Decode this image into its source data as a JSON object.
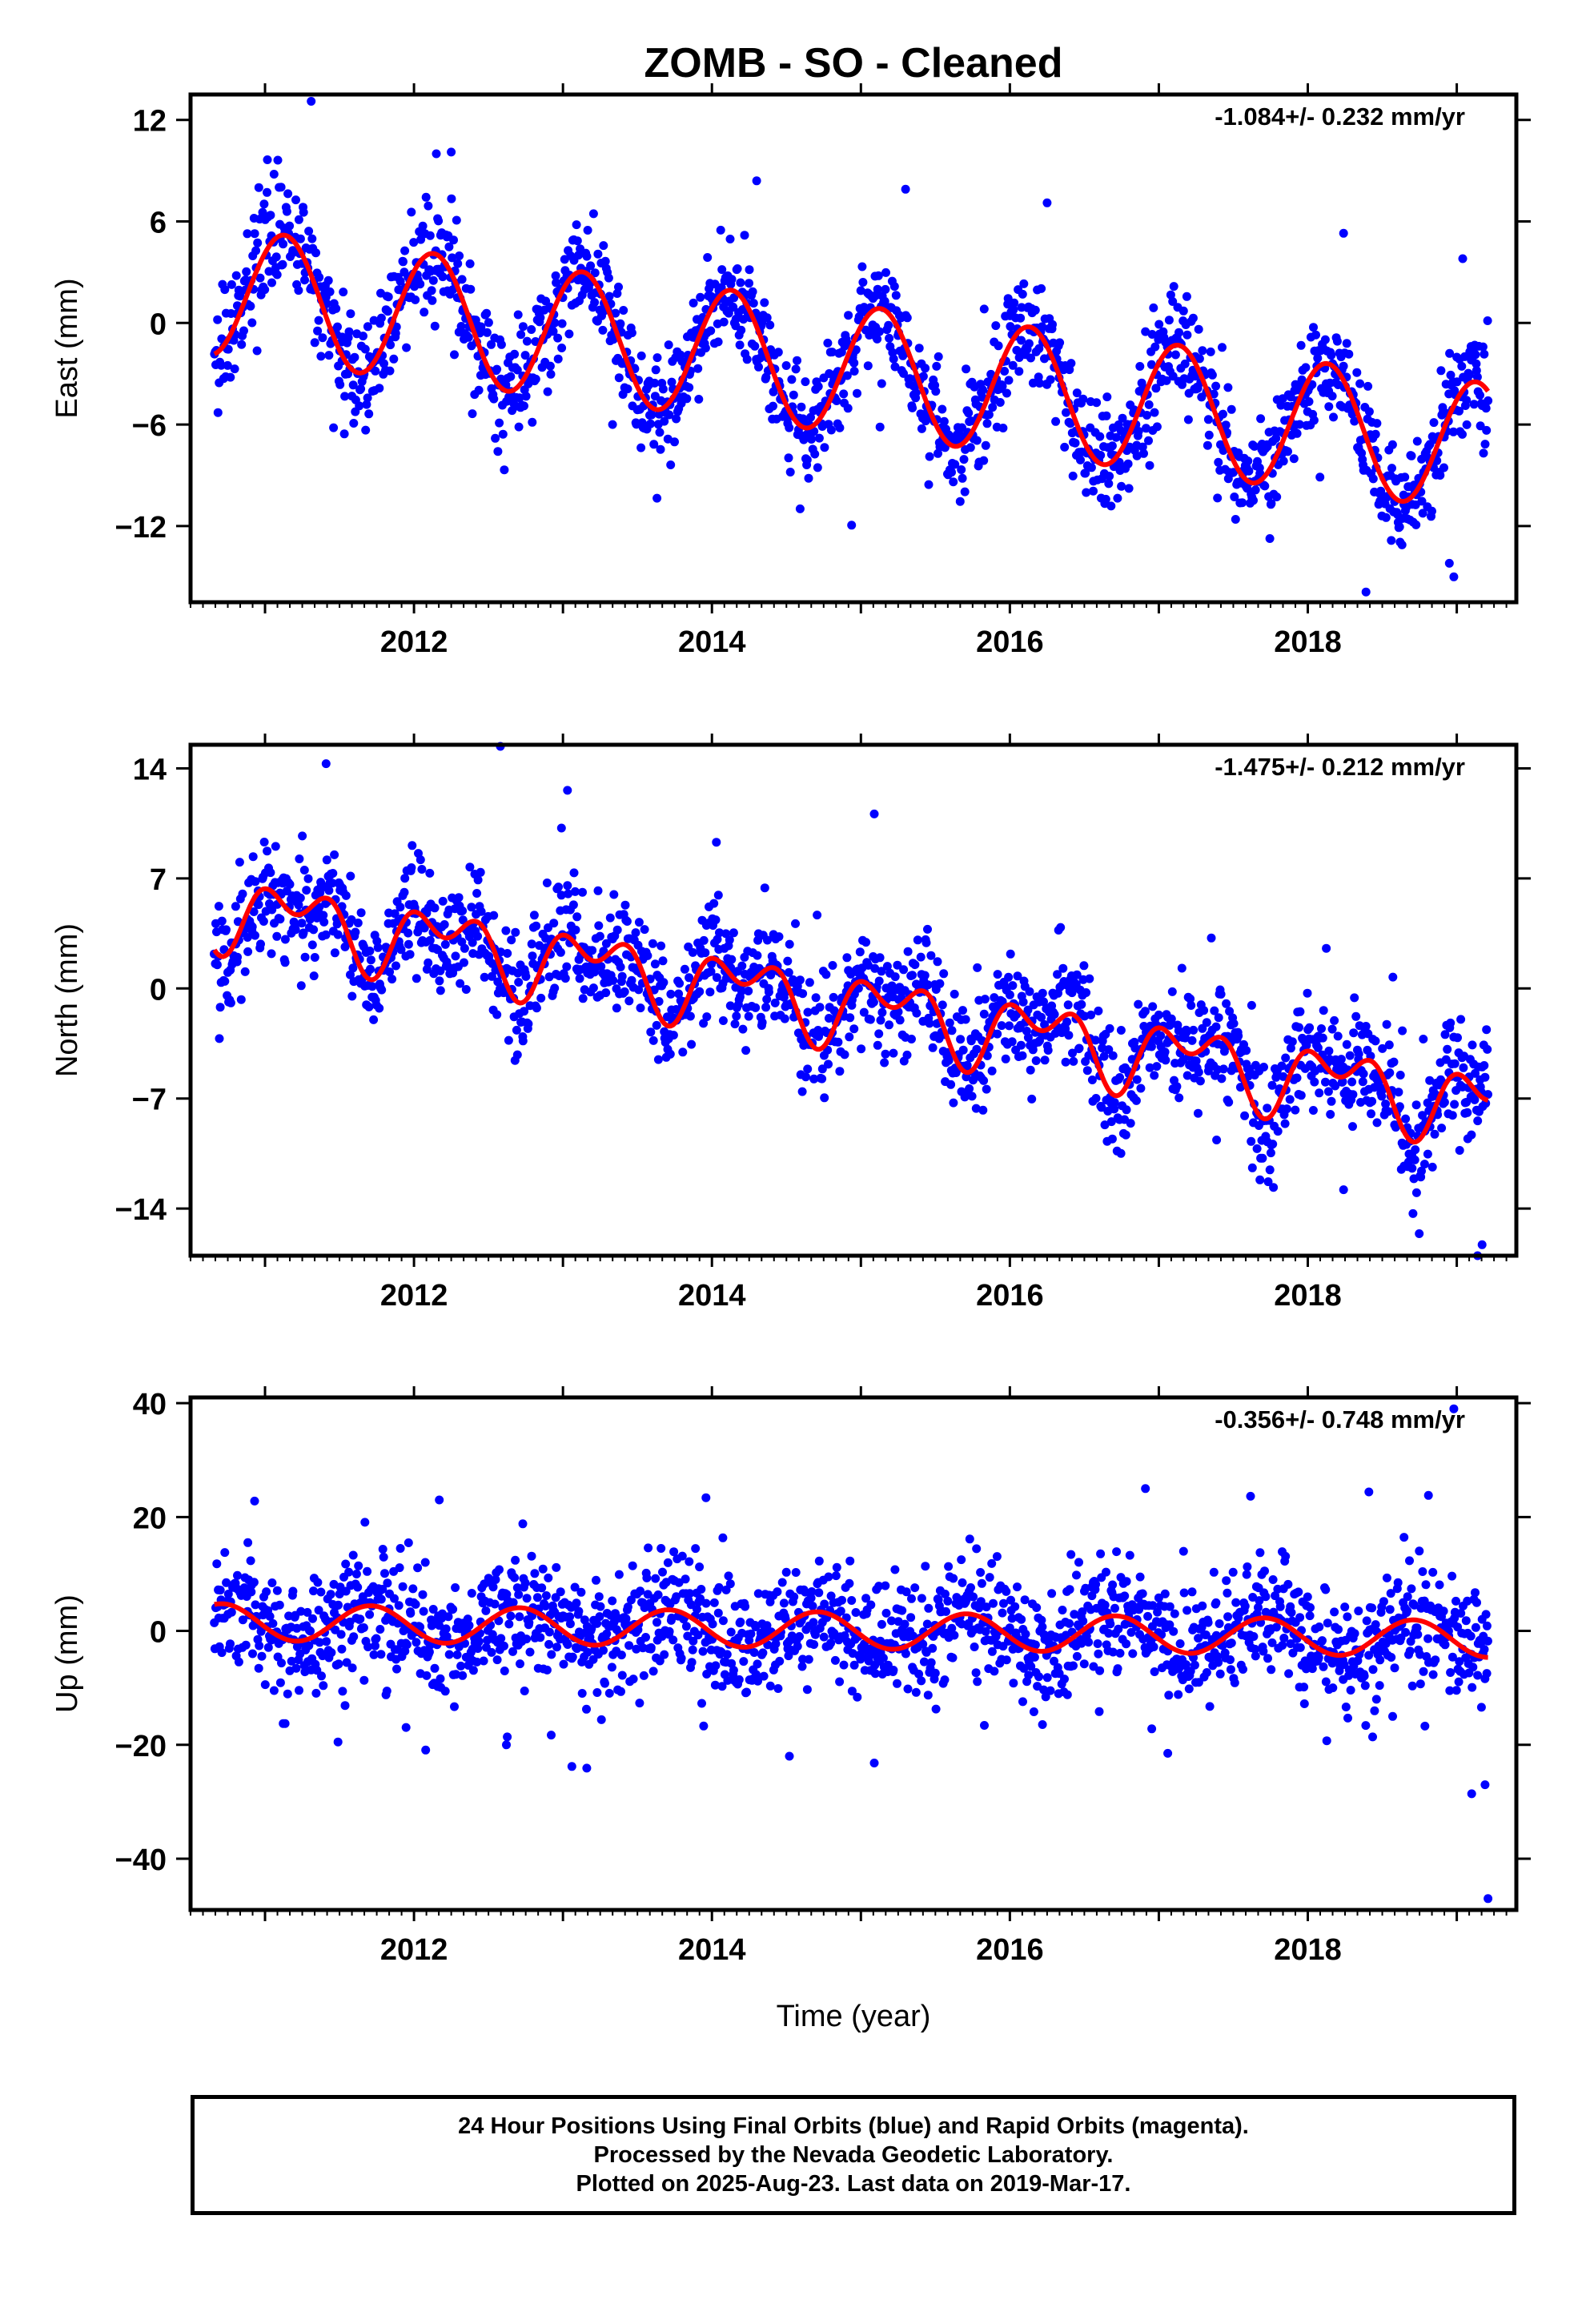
{
  "title": "ZOMB  - SO - Cleaned",
  "colors": {
    "points": "#0000ff",
    "fit": "#ff0000",
    "axis": "#000000",
    "background": "#ffffff"
  },
  "footer": {
    "line1": "24 Hour Positions Using Final Orbits (blue) and Rapid Orbits (magenta).",
    "line2": "Processed by the Nevada Geodetic Laboratory.",
    "line3": "Plotted on 2025-Aug-23. Last data on 2019-Mar-17."
  },
  "chart_data": [
    {
      "type": "scatter",
      "component": "east",
      "ylabel": "East (mm)",
      "xlabel": "",
      "rate_annotation": "-1.084+/- 0.232 mm/yr",
      "xlim": [
        2010.5,
        2019.4
      ],
      "ylim": [
        -16.5,
        13.5
      ],
      "xticks": [
        2012,
        2014,
        2016,
        2018
      ],
      "xtick_labels": [
        "2012",
        "2014",
        "2016",
        "2018"
      ],
      "yticks": [
        12,
        6,
        0,
        -6,
        -12
      ],
      "ytick_labels": [
        "12",
        "6",
        "0",
        "-6",
        "-12"
      ],
      "data_range_x": [
        2010.66,
        2019.21
      ],
      "model": {
        "offset_at_2010": 1.9,
        "trend_mm_per_yr": -1.084,
        "reference_year": 2010.66,
        "annual_amplitude": 3.8,
        "annual_phase": 0.47,
        "semiannual_amplitude": 0.0,
        "semiannual_phase": 0.0
      },
      "scatter_sigma": 1.6,
      "outliers": [
        [
          2011.31,
          13.1
        ],
        [
          2012.15,
          10.0
        ],
        [
          2012.25,
          10.1
        ],
        [
          2019.04,
          3.8
        ],
        [
          2018.95,
          -14.2
        ],
        [
          2018.98,
          -15.0
        ],
        [
          2016.25,
          7.1
        ],
        [
          2015.3,
          7.9
        ],
        [
          2018.24,
          5.3
        ],
        [
          2014.3,
          8.4
        ]
      ],
      "fit_series_name": "",
      "point_series_name": ""
    },
    {
      "type": "scatter",
      "component": "north",
      "ylabel": "North (mm)",
      "xlabel": "",
      "rate_annotation": "-1.475+/- 0.212 mm/yr",
      "xlim": [
        2010.5,
        2019.4
      ],
      "ylim": [
        -17,
        15.5
      ],
      "xticks": [
        2012,
        2014,
        2016,
        2018
      ],
      "xtick_labels": [
        "2012",
        "2014",
        "2016",
        "2018"
      ],
      "yticks": [
        14,
        7,
        0,
        -7,
        -14
      ],
      "ytick_labels": [
        "14",
        "7",
        "0",
        "-7",
        "-14"
      ],
      "data_range_x": [
        2010.66,
        2019.21
      ],
      "model": {
        "offset_at_2010": 5.2,
        "trend_mm_per_yr": -1.475,
        "reference_year": 2010.66,
        "annual_amplitude": 1.7,
        "annual_phase": 0.55,
        "semiannual_amplitude": 1.4,
        "semiannual_phase": 0.3
      },
      "scatter_sigma": 1.8,
      "outliers": [
        [
          2011.41,
          14.3
        ],
        [
          2012.58,
          15.4
        ],
        [
          2013.03,
          12.6
        ],
        [
          2011.25,
          9.7
        ],
        [
          2015.09,
          11.1
        ],
        [
          2014.03,
          9.3
        ],
        [
          2019.17,
          -16.3
        ],
        [
          2019.14,
          -17.0
        ],
        [
          2018.24,
          -12.8
        ],
        [
          2012.99,
          10.2
        ]
      ],
      "fit_series_name": "",
      "point_series_name": ""
    },
    {
      "type": "scatter",
      "component": "up",
      "ylabel": "Up (mm)",
      "xlabel": "Time (year)",
      "rate_annotation": "-0.356+/- 0.748 mm/yr",
      "xlim": [
        2010.5,
        2019.4
      ],
      "ylim": [
        -49,
        41
      ],
      "xticks": [
        2012,
        2014,
        2016,
        2018
      ],
      "xtick_labels": [
        "2012",
        "2014",
        "2016",
        "2018"
      ],
      "yticks": [
        40,
        20,
        0,
        -20,
        -40
      ],
      "ytick_labels": [
        "40",
        "20",
        "0",
        "-20",
        "-40"
      ],
      "data_range_x": [
        2010.66,
        2019.21
      ],
      "model": {
        "offset_at_2010": 1.6,
        "trend_mm_per_yr": -0.356,
        "reference_year": 2010.66,
        "annual_amplitude": 3.2,
        "annual_phase": 0.05,
        "semiannual_amplitude": 0.0,
        "semiannual_phase": 0.0
      },
      "scatter_sigma": 5.2,
      "outliers": [
        [
          2018.98,
          39.0
        ],
        [
          2016.91,
          25.0
        ],
        [
          2018.41,
          24.4
        ],
        [
          2018.81,
          23.8
        ],
        [
          2013.96,
          23.4
        ],
        [
          2012.17,
          23.0
        ],
        [
          2010.93,
          22.8
        ],
        [
          2019.21,
          -47.0
        ],
        [
          2019.1,
          -28.6
        ],
        [
          2013.06,
          -23.8
        ],
        [
          2013.16,
          -24.1
        ],
        [
          2015.09,
          -23.2
        ],
        [
          2014.52,
          -22.0
        ],
        [
          2012.62,
          -20.0
        ],
        [
          2011.49,
          -19.5
        ],
        [
          2017.06,
          -21.5
        ],
        [
          2019.19,
          -27.0
        ]
      ],
      "fit_series_name": "",
      "point_series_name": ""
    }
  ]
}
